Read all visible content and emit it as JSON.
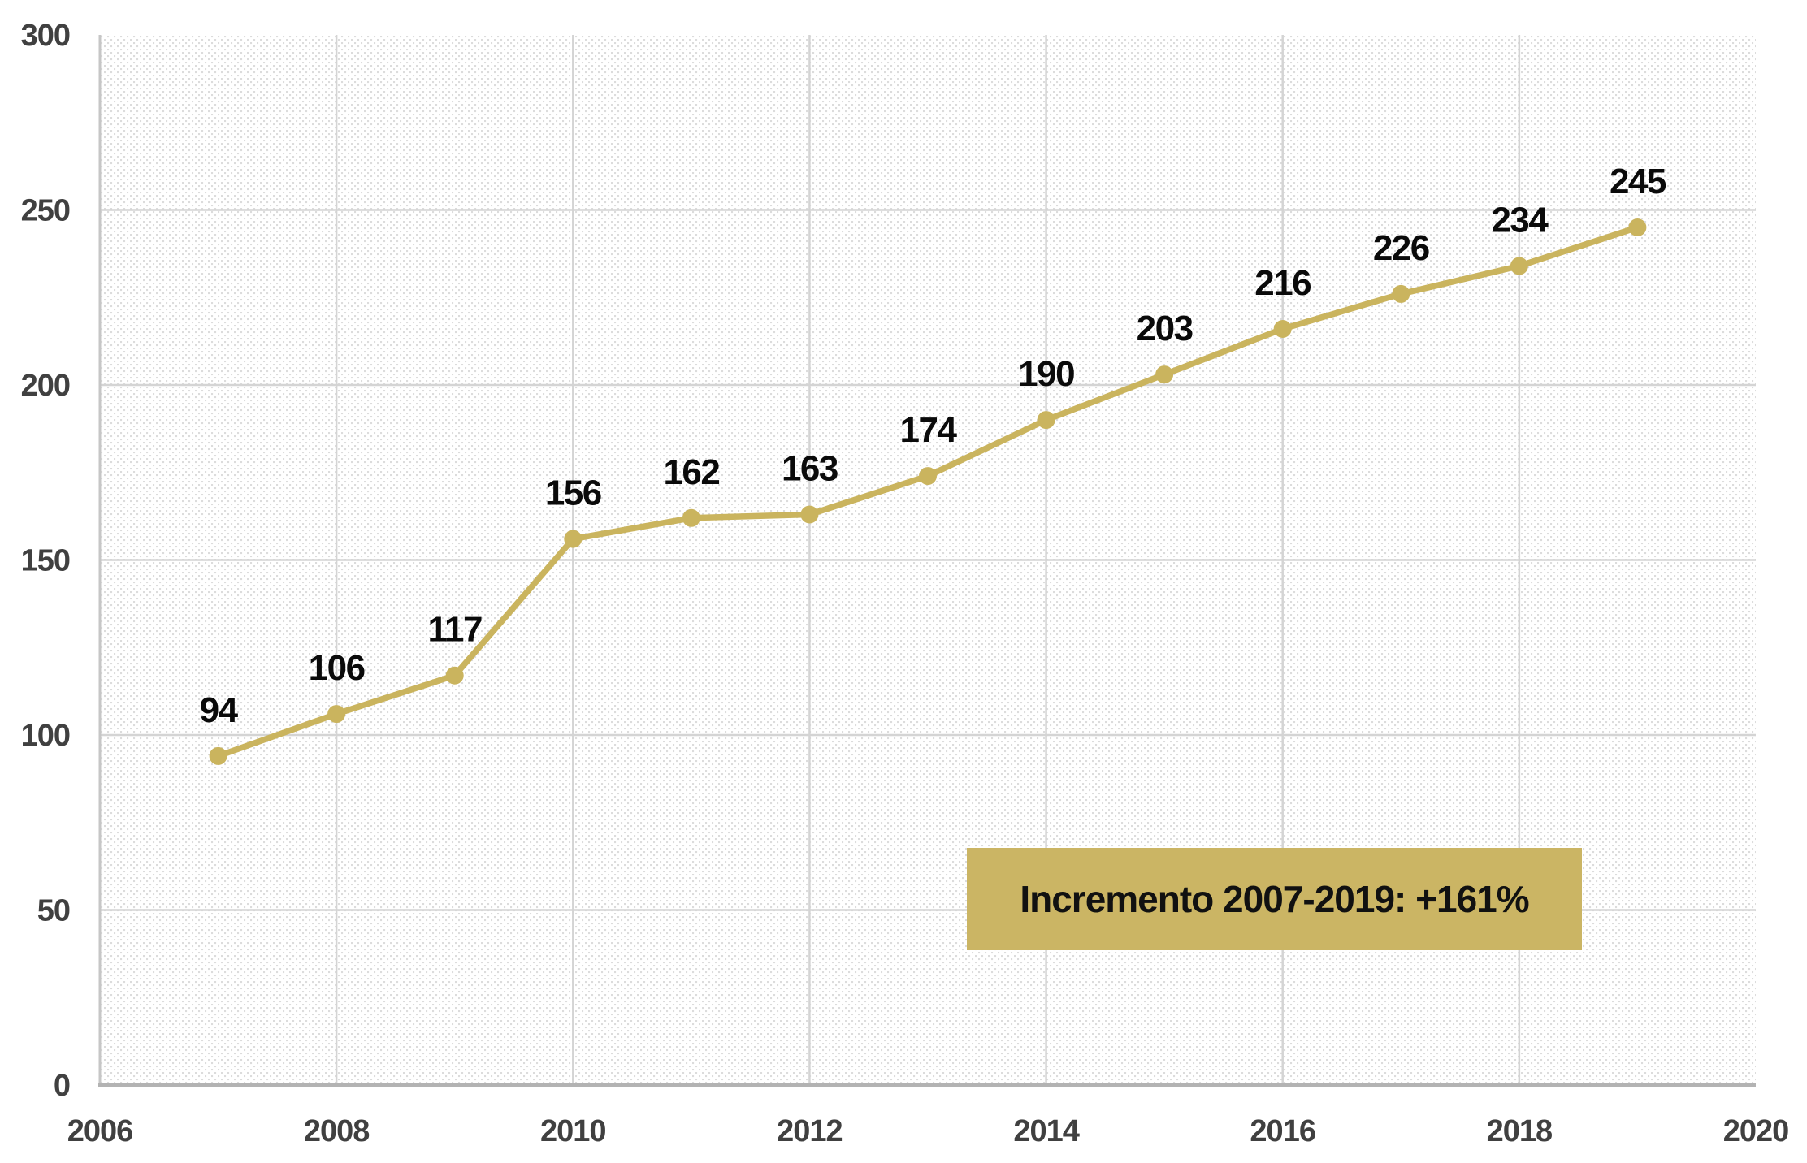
{
  "chart_data": {
    "type": "line",
    "x": [
      2007,
      2008,
      2009,
      2010,
      2011,
      2012,
      2013,
      2014,
      2015,
      2016,
      2017,
      2018,
      2019
    ],
    "values": [
      94,
      106,
      117,
      156,
      162,
      163,
      174,
      190,
      203,
      216,
      226,
      234,
      245
    ],
    "xlabel": "",
    "ylabel": "",
    "xlim": [
      2006,
      2020
    ],
    "ylim": [
      0,
      300
    ],
    "x_ticks": [
      2006,
      2008,
      2010,
      2012,
      2014,
      2016,
      2018,
      2020
    ],
    "y_ticks": [
      0,
      50,
      100,
      150,
      200,
      250,
      300
    ],
    "grid": true,
    "legend": false,
    "data_labels_visible": true,
    "plot_background": "diagonal-hatch",
    "annotation": {
      "text": "Incremento 2007-2019: +161%"
    },
    "colors": {
      "line": "#CAB45E",
      "marker": "#CAB45E",
      "annotation_bg": "#CBB564",
      "annotation_text": "#111111",
      "data_label": "#0a0a0a",
      "tick_label": "#404040",
      "gridline": "#d4d4d4",
      "axis_left": "#c6c6c6",
      "axis_bottom": "#b3b3b3",
      "hatch_dot": "#dcdcdc",
      "background": "#ffffff"
    }
  }
}
